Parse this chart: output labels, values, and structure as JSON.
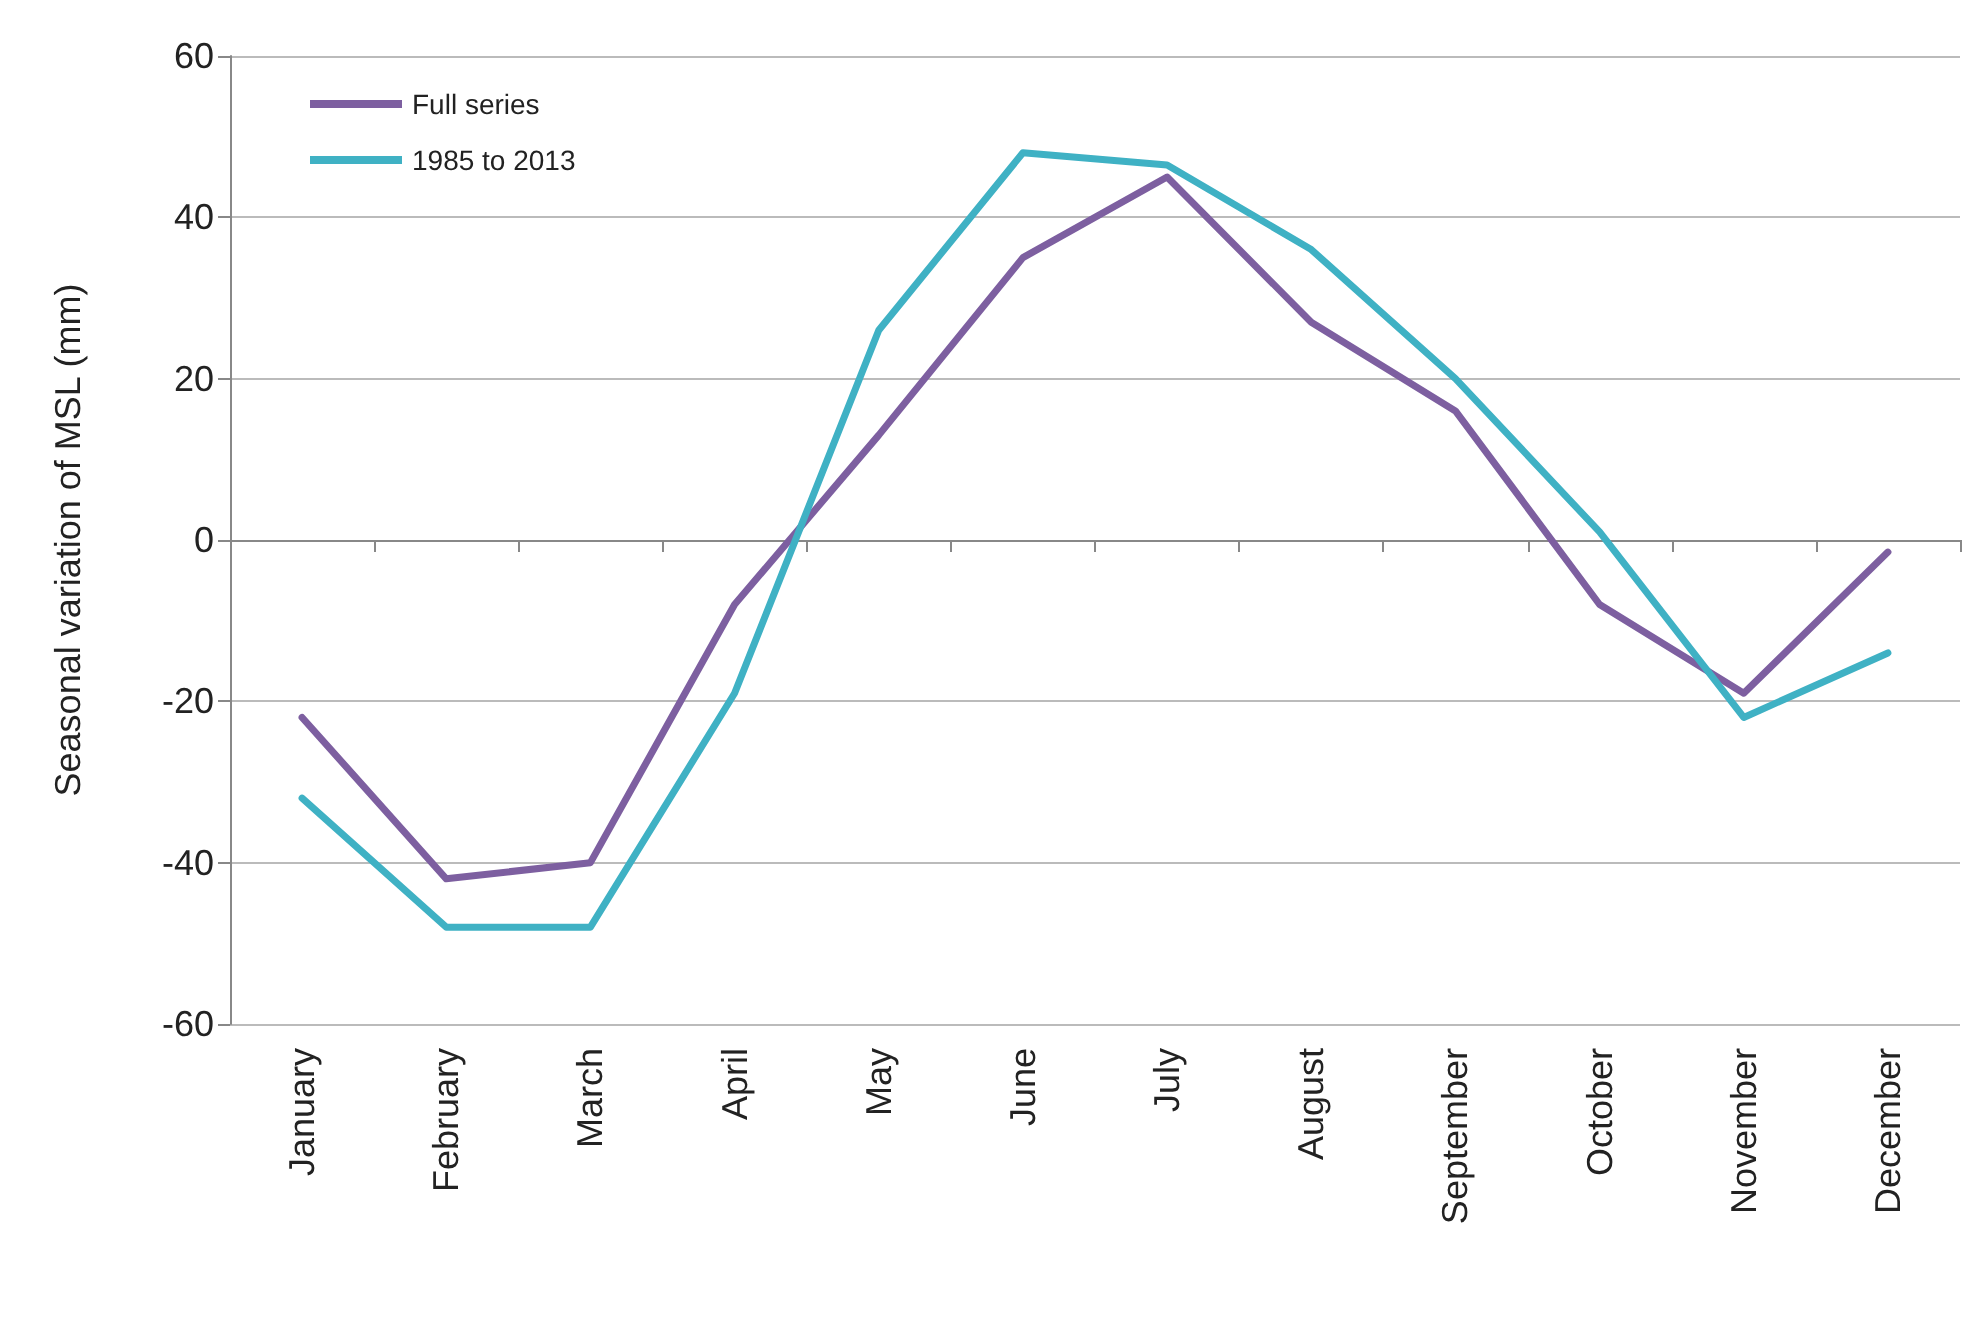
{
  "chart_data": {
    "type": "line",
    "ylabel": "Seasonal variation of MSL (mm)",
    "categories": [
      "January",
      "February",
      "March",
      "April",
      "May",
      "June",
      "July",
      "August",
      "September",
      "October",
      "November",
      "December"
    ],
    "series": [
      {
        "name": "Full series",
        "color": "#7d5fa0",
        "values": [
          -22,
          -42,
          -40,
          -8,
          13,
          35,
          45,
          27,
          16,
          -8,
          -19,
          -1.5
        ]
      },
      {
        "name": "1985 to 2013",
        "color": "#3fb1c4",
        "values": [
          -32,
          -48,
          -48,
          -19,
          26,
          48,
          46.5,
          36,
          20,
          1,
          -22,
          -14
        ]
      }
    ],
    "ylim": [
      -60,
      60
    ],
    "yticks": [
      -60,
      -40,
      -20,
      0,
      20,
      40,
      60
    ],
    "grid": "y",
    "legend": "top left",
    "marker": "none",
    "line_style": "solid"
  }
}
